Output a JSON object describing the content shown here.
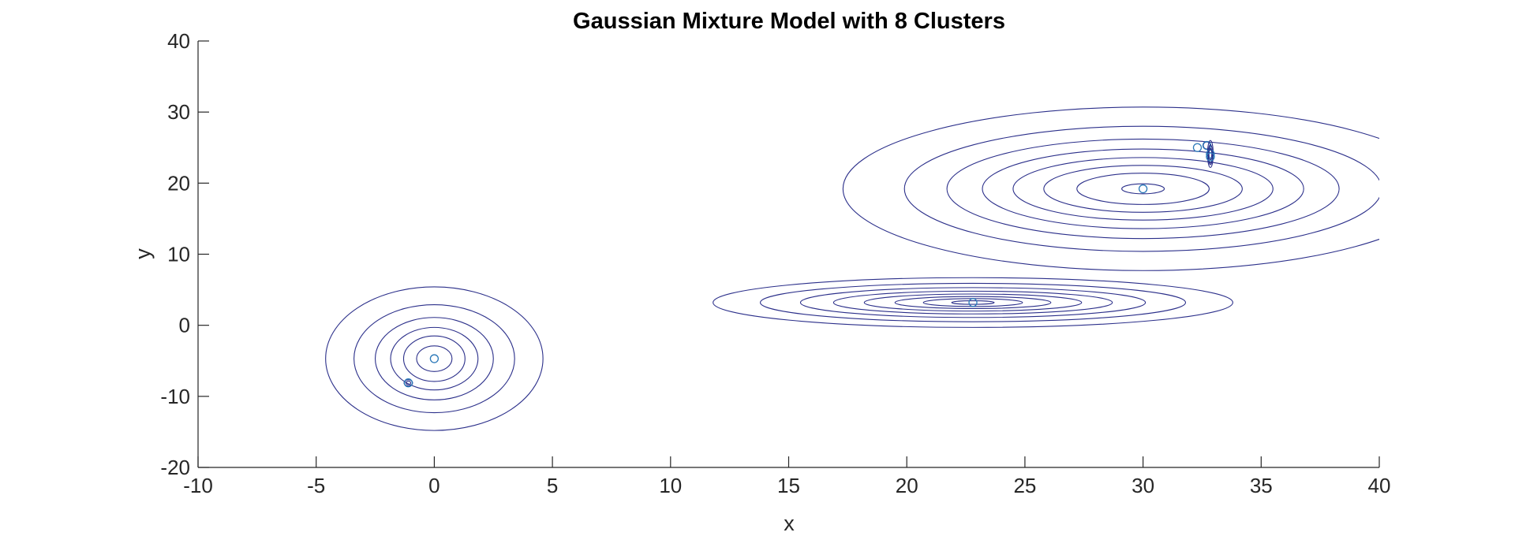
{
  "chart_data": {
    "type": "contour",
    "title": "Gaussian Mixture Model with 8 Clusters",
    "xlabel": "x",
    "ylabel": "y",
    "xlim": [
      -10,
      40
    ],
    "ylim": [
      -20,
      40
    ],
    "xticks": [
      -10,
      -5,
      0,
      5,
      10,
      15,
      20,
      25,
      30,
      35,
      40
    ],
    "yticks": [
      -20,
      -10,
      0,
      10,
      20,
      30,
      40
    ],
    "xtick_labels": [
      "-10",
      "-5",
      "0",
      "5",
      "10",
      "15",
      "20",
      "25",
      "30",
      "35",
      "40"
    ],
    "ytick_labels": [
      "-20",
      "-10",
      "0",
      "10",
      "20",
      "30",
      "40"
    ],
    "grid": false,
    "box": false,
    "colors": {
      "contour": "#2b2f8a",
      "center": "#2a78b8",
      "axis": "#262626"
    },
    "clusters": [
      {
        "mean": [
          0,
          -4.7
        ],
        "radii": [
          [
            4.6,
            10.1
          ],
          [
            3.4,
            7.6
          ],
          [
            2.5,
            5.8
          ],
          [
            1.85,
            4.4
          ],
          [
            1.3,
            3.2
          ],
          [
            0.75,
            1.8
          ]
        ]
      },
      {
        "mean": [
          -1.1,
          -8.1
        ],
        "radii": [
          [
            0.18,
            0.45
          ],
          [
            0.1,
            0.25
          ]
        ]
      },
      {
        "mean": [
          22.8,
          3.2
        ],
        "radii": [
          [
            11.0,
            3.5
          ],
          [
            9.0,
            2.7
          ],
          [
            7.3,
            2.1
          ],
          [
            5.9,
            1.6
          ],
          [
            4.6,
            1.2
          ],
          [
            3.3,
            0.85
          ],
          [
            2.1,
            0.55
          ],
          [
            0.9,
            0.25
          ]
        ]
      },
      {
        "mean": [
          30.0,
          19.2
        ],
        "radii": [
          [
            12.7,
            11.5
          ],
          [
            10.1,
            8.8
          ],
          [
            8.3,
            7.0
          ],
          [
            6.8,
            5.6
          ],
          [
            5.5,
            4.4
          ],
          [
            4.2,
            3.3
          ],
          [
            2.8,
            2.2
          ],
          [
            0.9,
            0.7
          ]
        ]
      },
      {
        "mean": [
          32.3,
          25.0
        ],
        "radii": []
      },
      {
        "mean": [
          32.7,
          25.3
        ],
        "radii": [
          [
            0.15,
            0.5
          ]
        ]
      },
      {
        "mean": [
          32.85,
          24.1
        ],
        "radii": [
          [
            0.12,
            1.9
          ],
          [
            0.09,
            1.3
          ],
          [
            0.06,
            0.8
          ]
        ]
      },
      {
        "mean": [
          32.85,
          23.7
        ],
        "radii": [
          [
            0.08,
            1.1
          ]
        ]
      }
    ]
  }
}
